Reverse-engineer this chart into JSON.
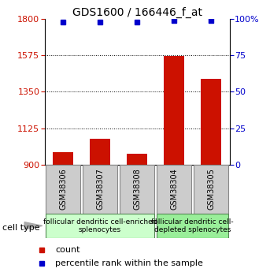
{
  "title": "GDS1600 / 166446_f_at",
  "samples": [
    "GSM38306",
    "GSM38307",
    "GSM38308",
    "GSM38304",
    "GSM38305"
  ],
  "counts": [
    975,
    1060,
    968,
    1570,
    1430
  ],
  "percentiles": [
    98,
    98,
    98,
    99,
    99
  ],
  "ylim_left": [
    900,
    1800
  ],
  "ylim_right": [
    0,
    100
  ],
  "yticks_left": [
    900,
    1125,
    1350,
    1575,
    1800
  ],
  "yticks_right": [
    0,
    25,
    50,
    75,
    100
  ],
  "bar_color": "#cc1100",
  "dot_color": "#0000cc",
  "dotted_lines": [
    1125,
    1350,
    1575
  ],
  "group1_label": "follicular dendritic cell-enriched\nsplenocytes",
  "group2_label": "follicular dendritic cell-\ndepleted splenocytes",
  "group1_color": "#ccffcc",
  "group2_color": "#99ee99",
  "group_border_color": "#558855",
  "sample_box_color": "#cccccc",
  "sample_box_border": "#888888",
  "cell_type_label": "cell type",
  "legend_count_label": "count",
  "legend_percentile_label": "percentile rank within the sample",
  "bar_width": 0.55,
  "title_fontsize": 10,
  "tick_fontsize": 8,
  "sample_fontsize": 7,
  "group_fontsize": 6.5,
  "legend_fontsize": 8
}
